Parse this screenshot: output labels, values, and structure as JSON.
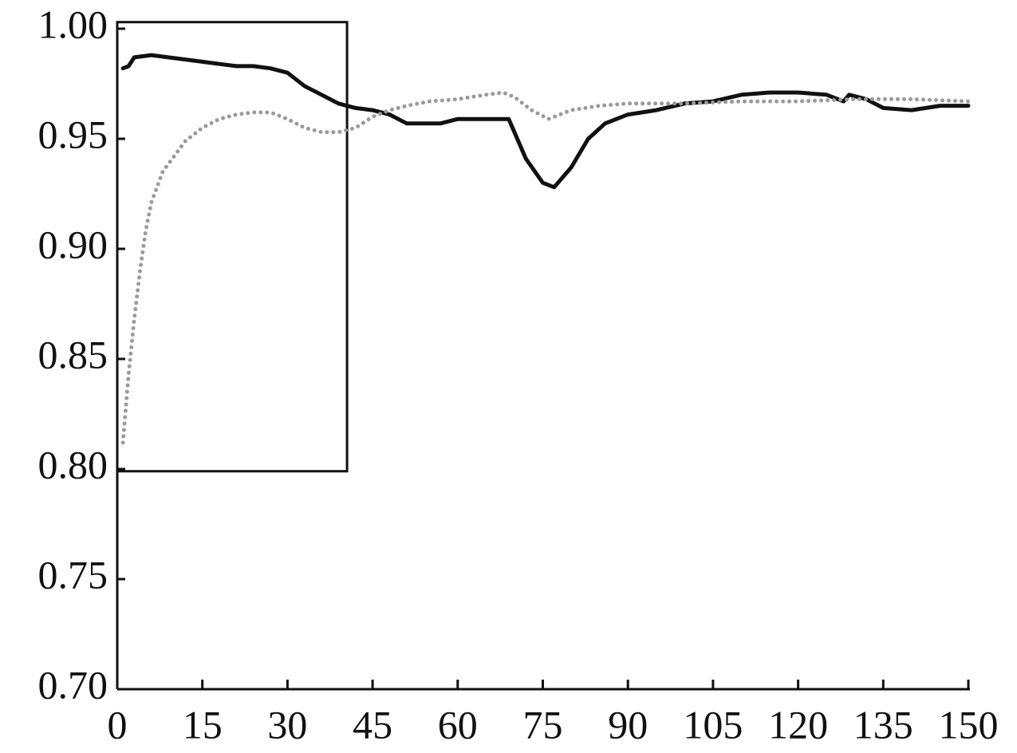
{
  "chart_data": {
    "type": "line",
    "series": [
      {
        "color": "#111111",
        "style": "solid",
        "x": [
          1,
          2,
          3,
          6,
          9,
          12,
          15,
          18,
          21,
          24,
          27,
          30,
          33,
          36,
          39,
          42,
          45,
          48,
          51,
          54,
          57,
          60,
          63,
          66,
          69,
          72,
          75,
          77,
          80,
          83,
          86,
          90,
          95,
          100,
          105,
          110,
          115,
          120,
          125,
          128,
          129,
          132,
          135,
          140,
          145,
          150
        ],
        "values": [
          0.982,
          0.983,
          0.987,
          0.988,
          0.987,
          0.986,
          0.985,
          0.984,
          0.983,
          0.983,
          0.982,
          0.98,
          0.974,
          0.97,
          0.966,
          0.964,
          0.963,
          0.961,
          0.957,
          0.957,
          0.957,
          0.959,
          0.959,
          0.959,
          0.959,
          0.941,
          0.93,
          0.928,
          0.937,
          0.95,
          0.957,
          0.961,
          0.963,
          0.966,
          0.967,
          0.97,
          0.971,
          0.971,
          0.97,
          0.967,
          0.97,
          0.968,
          0.964,
          0.963,
          0.965,
          0.965
        ]
      },
      {
        "color": "#9a9a9a",
        "style": "dotted",
        "x": [
          1,
          2,
          3,
          4,
          5,
          6,
          8,
          10,
          12,
          15,
          18,
          21,
          24,
          27,
          30,
          33,
          36,
          39,
          42,
          45,
          48,
          51,
          55,
          60,
          65,
          68,
          70,
          73,
          76,
          80,
          85,
          90,
          100,
          110,
          120,
          130,
          140,
          150
        ],
        "values": [
          0.812,
          0.843,
          0.868,
          0.89,
          0.908,
          0.921,
          0.935,
          0.942,
          0.949,
          0.955,
          0.959,
          0.961,
          0.962,
          0.962,
          0.959,
          0.955,
          0.953,
          0.953,
          0.955,
          0.96,
          0.963,
          0.965,
          0.967,
          0.968,
          0.97,
          0.971,
          0.969,
          0.963,
          0.959,
          0.963,
          0.965,
          0.966,
          0.966,
          0.967,
          0.967,
          0.968,
          0.968,
          0.967
        ]
      }
    ],
    "highlight_box": {
      "x": [
        0,
        40.5
      ],
      "y": [
        0.799,
        1.003
      ]
    },
    "xlim": [
      0,
      150
    ],
    "xticks": [
      0,
      15,
      30,
      45,
      60,
      75,
      90,
      105,
      120,
      135,
      150
    ],
    "ylim": [
      0.7,
      1.0
    ],
    "yticks": [
      {
        "value": 0.7,
        "label": "0.70"
      },
      {
        "value": 0.75,
        "label": "0.75"
      },
      {
        "value": 0.8,
        "label": "0.80"
      },
      {
        "value": 0.85,
        "label": "0.85"
      },
      {
        "value": 0.9,
        "label": "0.90"
      },
      {
        "value": 0.95,
        "label": "0.95"
      },
      {
        "value": 1.0,
        "label": "1.00"
      }
    ],
    "grid": false
  }
}
